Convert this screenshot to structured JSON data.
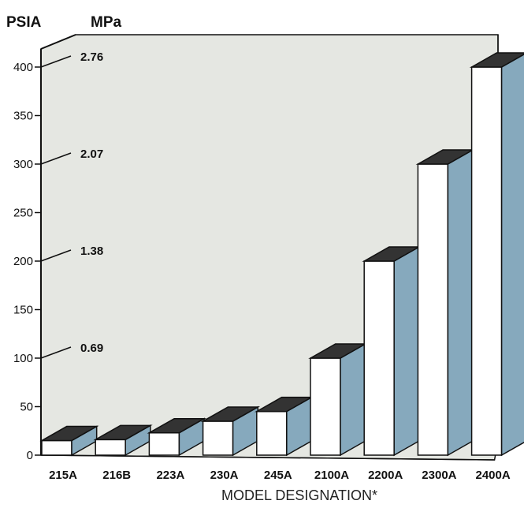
{
  "chart_data": {
    "type": "bar",
    "title": "",
    "xlabel": "MODEL DESIGNATION*",
    "ylabel_primary": "PSIA",
    "ylabel_secondary": "MPa",
    "ylim": [
      0,
      400
    ],
    "yticks": [
      "0",
      "50",
      "100",
      "150",
      "200",
      "250",
      "300",
      "350",
      "400"
    ],
    "secondary_ticks": [
      {
        "psia": 100,
        "label": "0.69"
      },
      {
        "psia": 200,
        "label": "1.38"
      },
      {
        "psia": 300,
        "label": "2.07"
      },
      {
        "psia": 400,
        "label": "2.76"
      }
    ],
    "categories": [
      "215A",
      "216B",
      "223A",
      "230A",
      "245A",
      "2100A",
      "2200A",
      "2300A",
      "2400A"
    ],
    "values": [
      15,
      16,
      23,
      35,
      45,
      100,
      200,
      300,
      400
    ],
    "colors": {
      "floor": "#e5e7e2",
      "bar_front": "#ffffff",
      "bar_side": "#86a9bd",
      "bar_top": "#333333",
      "axis": "#111111"
    }
  }
}
